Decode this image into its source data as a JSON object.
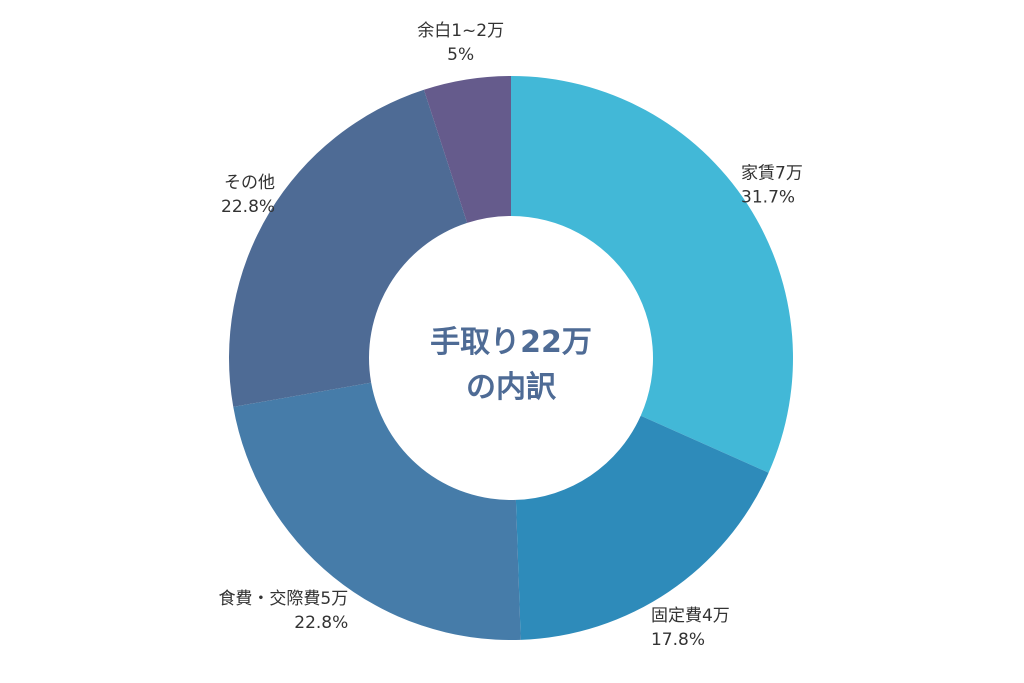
{
  "chart_data": {
    "type": "pie",
    "title": "",
    "center_text": [
      "手取り22万",
      "の内訳"
    ],
    "slices": [
      {
        "label": "家賃7万",
        "value": 31.7,
        "display": "31.7%",
        "color": "#42b8d7"
      },
      {
        "label": "固定費4万",
        "value": 17.8,
        "display": "17.8%",
        "color": "#2e8bba"
      },
      {
        "label": "食費・交際費5万",
        "value": 22.8,
        "display": "22.8%",
        "color": "#467ca9"
      },
      {
        "label": "その他",
        "value": 22.8,
        "display": "22.8%",
        "color": "#4e6b95"
      },
      {
        "label": "余白1~2万",
        "value": 5,
        "display": "5%",
        "color": "#655b8c"
      }
    ],
    "center_text_color": "#4e6b95",
    "legend": "none"
  }
}
